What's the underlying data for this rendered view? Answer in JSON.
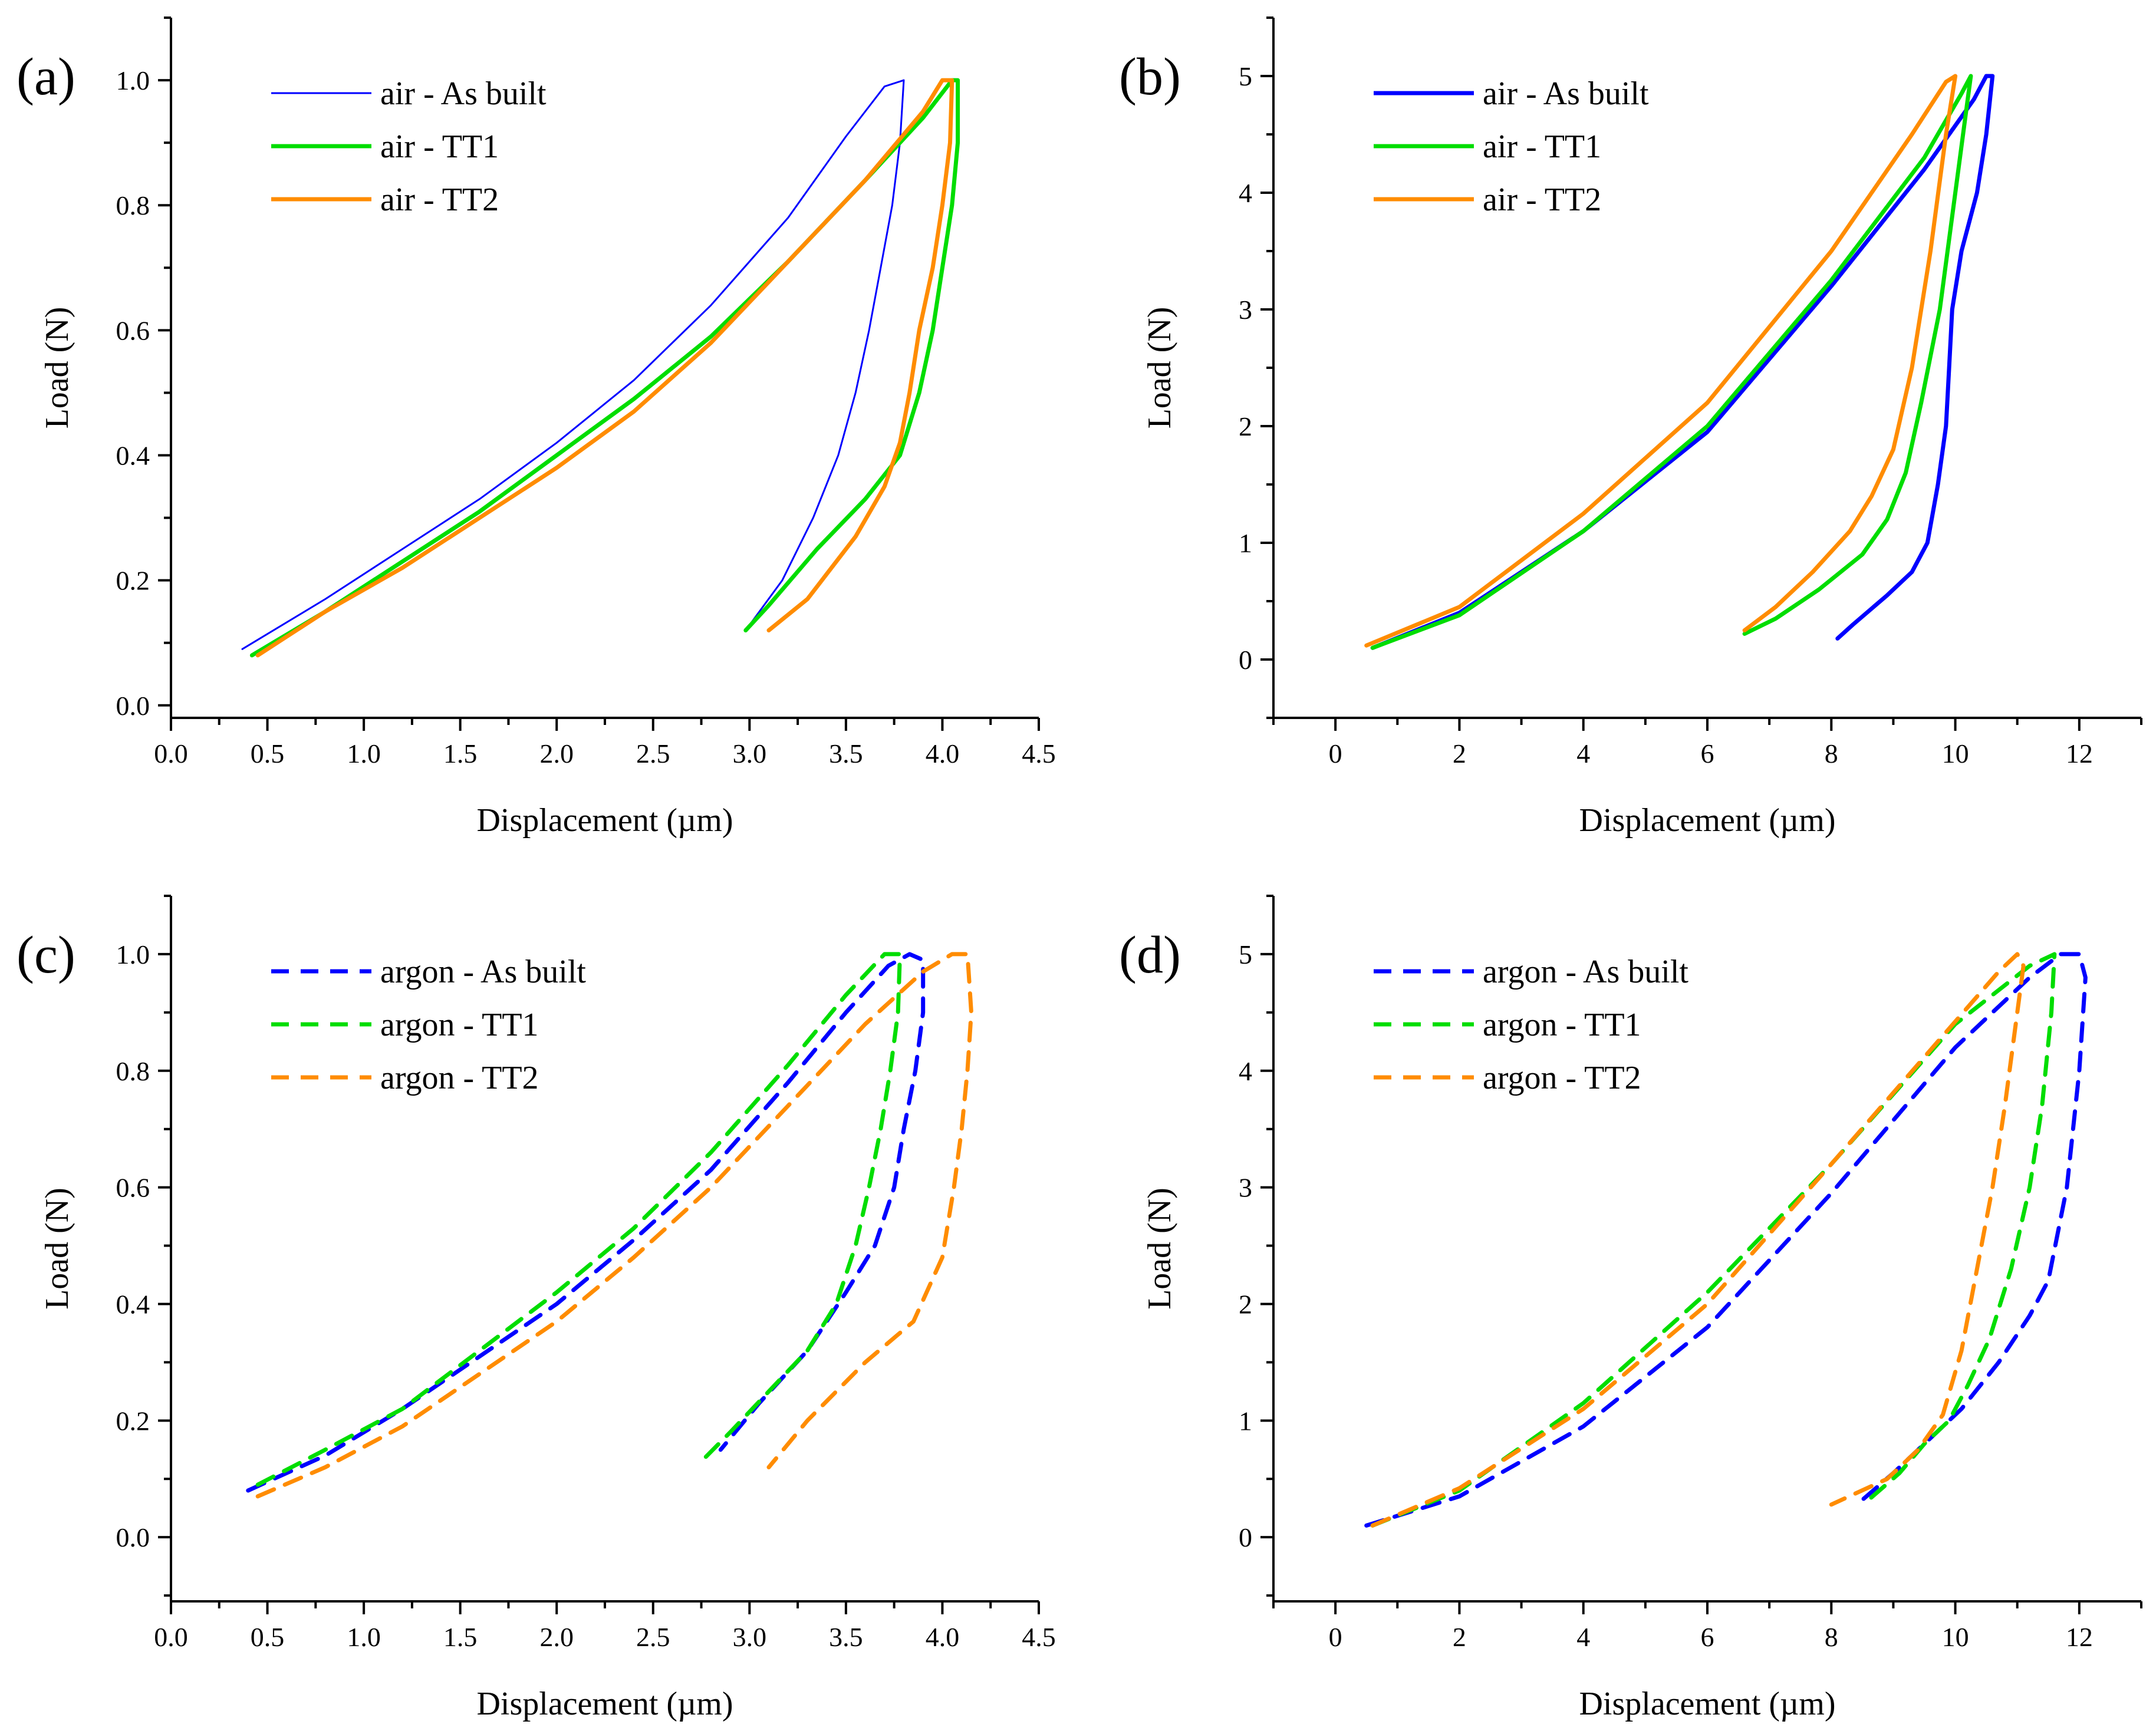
{
  "chart_data": [
    {
      "type": "line",
      "panel_label": "(a)",
      "xlabel": "Displacement (µm)",
      "ylabel": "Load (N)",
      "xlim": [
        0.0,
        4.5
      ],
      "ylim": [
        -0.02,
        1.1
      ],
      "xticks": [
        0.0,
        0.5,
        1.0,
        1.5,
        2.0,
        2.5,
        3.0,
        3.5,
        4.0,
        4.5
      ],
      "xtick_labels": [
        "0.0",
        "0.5",
        "1.0",
        "1.5",
        "2.0",
        "2.5",
        "3.0",
        "3.5",
        "4.0",
        "4.5"
      ],
      "yticks": [
        0.0,
        0.2,
        0.4,
        0.6,
        0.8,
        1.0
      ],
      "ytick_labels": [
        "0.0",
        "0.2",
        "0.4",
        "0.6",
        "0.8",
        "1.0"
      ],
      "legend_position": "top-left",
      "series": [
        {
          "name": "air - As built",
          "color": "#0000ff",
          "dash": "solid",
          "weight": "thin",
          "x": [
            0.37,
            0.8,
            1.2,
            1.6,
            2.0,
            2.4,
            2.8,
            3.2,
            3.5,
            3.7,
            3.8,
            3.8,
            3.78,
            3.74,
            3.68,
            3.62,
            3.55,
            3.46,
            3.33,
            3.17,
            2.98
          ],
          "y": [
            0.09,
            0.17,
            0.25,
            0.33,
            0.42,
            0.52,
            0.64,
            0.78,
            0.91,
            0.99,
            1.0,
            1.0,
            0.9,
            0.8,
            0.7,
            0.6,
            0.5,
            0.4,
            0.3,
            0.2,
            0.12
          ]
        },
        {
          "name": "air - TT1",
          "color": "#00dd00",
          "dash": "solid",
          "weight": "thick",
          "x": [
            0.42,
            0.8,
            1.2,
            1.6,
            2.0,
            2.4,
            2.8,
            3.2,
            3.6,
            3.9,
            4.05,
            4.08,
            4.08,
            4.05,
            4.0,
            3.95,
            3.88,
            3.78,
            3.6,
            3.35,
            3.1,
            2.98
          ],
          "y": [
            0.08,
            0.15,
            0.23,
            0.31,
            0.4,
            0.49,
            0.59,
            0.71,
            0.84,
            0.94,
            1.0,
            1.0,
            0.9,
            0.8,
            0.7,
            0.6,
            0.5,
            0.4,
            0.33,
            0.25,
            0.16,
            0.12
          ]
        },
        {
          "name": "air - TT2",
          "color": "#ff8c00",
          "dash": "solid",
          "weight": "thick",
          "x": [
            0.45,
            0.8,
            1.2,
            1.6,
            2.0,
            2.4,
            2.8,
            3.2,
            3.6,
            3.9,
            4.0,
            4.05,
            4.04,
            4.0,
            3.95,
            3.88,
            3.83,
            3.78,
            3.7,
            3.55,
            3.3,
            3.1
          ],
          "y": [
            0.08,
            0.15,
            0.22,
            0.3,
            0.38,
            0.47,
            0.58,
            0.71,
            0.84,
            0.95,
            1.0,
            1.0,
            0.9,
            0.8,
            0.7,
            0.6,
            0.5,
            0.42,
            0.35,
            0.27,
            0.17,
            0.12
          ]
        }
      ]
    },
    {
      "type": "line",
      "panel_label": "(b)",
      "xlabel": "Displacement (µm)",
      "ylabel": "Load (N)",
      "xlim": [
        -1.0,
        13.0
      ],
      "ylim": [
        -0.5,
        5.5
      ],
      "xticks": [
        0,
        2,
        4,
        6,
        8,
        10,
        12
      ],
      "xtick_labels": [
        "0",
        "2",
        "4",
        "6",
        "8",
        "10",
        "12"
      ],
      "yticks": [
        0,
        1,
        2,
        3,
        4,
        5
      ],
      "ytick_labels": [
        "0",
        "1",
        "2",
        "3",
        "4",
        "5"
      ],
      "legend_position": "top-left",
      "series": [
        {
          "name": "air - As built",
          "color": "#0000ff",
          "dash": "solid",
          "weight": "thick",
          "x": [
            0.6,
            2.0,
            4.0,
            6.0,
            8.0,
            9.5,
            10.3,
            10.5,
            10.6,
            10.5,
            10.35,
            10.1,
            9.95,
            9.9,
            9.85,
            9.72,
            9.55,
            9.3,
            8.9,
            8.35,
            8.1
          ],
          "y": [
            0.1,
            0.4,
            1.1,
            1.95,
            3.2,
            4.2,
            4.8,
            5.0,
            5.0,
            4.5,
            4.0,
            3.5,
            3.0,
            2.5,
            2.0,
            1.5,
            1.0,
            0.75,
            0.55,
            0.3,
            0.18
          ]
        },
        {
          "name": "air - TT1",
          "color": "#00dd00",
          "dash": "solid",
          "weight": "thick",
          "x": [
            0.6,
            2.0,
            4.0,
            6.0,
            8.0,
            9.5,
            10.1,
            10.25,
            10.2,
            10.0,
            9.75,
            9.45,
            9.2,
            8.9,
            8.5,
            7.8,
            7.1,
            6.6
          ],
          "y": [
            0.1,
            0.38,
            1.1,
            2.0,
            3.25,
            4.3,
            4.85,
            5.0,
            4.8,
            4.0,
            3.0,
            2.2,
            1.6,
            1.2,
            0.9,
            0.6,
            0.35,
            0.22
          ]
        },
        {
          "name": "air - TT2",
          "color": "#ff8c00",
          "dash": "solid",
          "weight": "thick",
          "x": [
            0.5,
            2.0,
            4.0,
            6.0,
            8.0,
            9.3,
            9.85,
            10.0,
            9.85,
            9.6,
            9.3,
            9.0,
            8.65,
            8.3,
            7.7,
            7.1,
            6.6
          ],
          "y": [
            0.12,
            0.45,
            1.25,
            2.2,
            3.5,
            4.5,
            4.95,
            5.0,
            4.5,
            3.5,
            2.5,
            1.8,
            1.4,
            1.1,
            0.75,
            0.45,
            0.25
          ]
        }
      ]
    },
    {
      "type": "line",
      "panel_label": "(c)",
      "xlabel": "Displacement (µm)",
      "ylabel": "Load (N)",
      "xlim": [
        0.0,
        4.5
      ],
      "ylim": [
        -0.11,
        1.1
      ],
      "xticks": [
        0.0,
        0.5,
        1.0,
        1.5,
        2.0,
        2.5,
        3.0,
        3.5,
        4.0,
        4.5
      ],
      "xtick_labels": [
        "0.0",
        "0.5",
        "1.0",
        "1.5",
        "2.0",
        "2.5",
        "3.0",
        "3.5",
        "4.0",
        "4.5"
      ],
      "yticks": [
        0.0,
        0.2,
        0.4,
        0.6,
        0.8,
        1.0
      ],
      "ytick_labels": [
        "0.0",
        "0.2",
        "0.4",
        "0.6",
        "0.8",
        "1.0"
      ],
      "legend_position": "top-left",
      "series": [
        {
          "name": "argon - As built",
          "color": "#0000ff",
          "dash": "dashed",
          "weight": "thick",
          "x": [
            0.4,
            0.8,
            1.2,
            1.6,
            2.0,
            2.4,
            2.8,
            3.2,
            3.5,
            3.72,
            3.83,
            3.9,
            3.9,
            3.86,
            3.8,
            3.75,
            3.65,
            3.5,
            3.3,
            3.05,
            2.85
          ],
          "y": [
            0.08,
            0.14,
            0.22,
            0.31,
            0.4,
            0.51,
            0.63,
            0.78,
            0.9,
            0.98,
            1.0,
            0.99,
            0.9,
            0.8,
            0.7,
            0.6,
            0.5,
            0.42,
            0.32,
            0.23,
            0.15
          ]
        },
        {
          "name": "argon - TT1",
          "color": "#00dd00",
          "dash": "dashed",
          "weight": "thick",
          "x": [
            0.45,
            0.8,
            1.2,
            1.6,
            2.0,
            2.4,
            2.8,
            3.2,
            3.5,
            3.7,
            3.78,
            3.77,
            3.73,
            3.68,
            3.62,
            3.55,
            3.45,
            3.3,
            3.1,
            2.9,
            2.75
          ],
          "y": [
            0.09,
            0.15,
            0.22,
            0.32,
            0.42,
            0.53,
            0.66,
            0.81,
            0.93,
            1.0,
            1.0,
            0.9,
            0.8,
            0.7,
            0.6,
            0.5,
            0.4,
            0.32,
            0.25,
            0.18,
            0.13
          ]
        },
        {
          "name": "argon - TT2",
          "color": "#ff8c00",
          "dash": "dashed",
          "weight": "thick",
          "x": [
            0.45,
            0.8,
            1.2,
            1.6,
            2.0,
            2.4,
            2.8,
            3.2,
            3.6,
            3.9,
            4.05,
            4.13,
            4.15,
            4.13,
            4.1,
            4.06,
            4.0,
            3.85,
            3.6,
            3.3,
            3.1
          ],
          "y": [
            0.07,
            0.12,
            0.19,
            0.28,
            0.37,
            0.48,
            0.6,
            0.74,
            0.88,
            0.97,
            1.0,
            1.0,
            0.9,
            0.8,
            0.7,
            0.6,
            0.48,
            0.37,
            0.3,
            0.2,
            0.12
          ]
        }
      ]
    },
    {
      "type": "line",
      "panel_label": "(d)",
      "xlabel": "Displacement (µm)",
      "ylabel": "Load (N)",
      "xlim": [
        -1.0,
        13.0
      ],
      "ylim": [
        -0.55,
        5.5
      ],
      "xticks": [
        0,
        2,
        4,
        6,
        8,
        10,
        12
      ],
      "xtick_labels": [
        "0",
        "2",
        "4",
        "6",
        "8",
        "10",
        "12"
      ],
      "yticks": [
        0,
        1,
        2,
        3,
        4,
        5
      ],
      "ytick_labels": [
        "0",
        "1",
        "2",
        "3",
        "4",
        "5"
      ],
      "legend_position": "top-left",
      "series": [
        {
          "name": "argon - As built",
          "color": "#0000ff",
          "dash": "dashed",
          "weight": "thick",
          "x": [
            0.5,
            2.0,
            4.0,
            6.0,
            8.0,
            10.0,
            11.2,
            11.7,
            12.0,
            12.1,
            12.0,
            11.8,
            11.5,
            11.2,
            10.7,
            10.1,
            9.5,
            9.0,
            8.5
          ],
          "y": [
            0.1,
            0.35,
            0.95,
            1.8,
            2.95,
            4.2,
            4.8,
            5.0,
            5.0,
            4.8,
            4.0,
            3.0,
            2.2,
            1.9,
            1.5,
            1.1,
            0.8,
            0.55,
            0.32
          ]
        },
        {
          "name": "argon - TT1",
          "color": "#00dd00",
          "dash": "dashed",
          "weight": "thick",
          "x": [
            0.6,
            2.0,
            4.0,
            6.0,
            8.0,
            10.0,
            11.2,
            11.6,
            11.55,
            11.4,
            11.2,
            10.9,
            10.55,
            10.2,
            9.9,
            9.5,
            9.1,
            8.6
          ],
          "y": [
            0.1,
            0.4,
            1.15,
            2.1,
            3.2,
            4.4,
            4.9,
            5.0,
            4.5,
            3.7,
            3.0,
            2.3,
            1.7,
            1.3,
            1.0,
            0.8,
            0.55,
            0.32
          ]
        },
        {
          "name": "argon - TT2",
          "color": "#ff8c00",
          "dash": "dashed",
          "weight": "thick",
          "x": [
            0.6,
            2.0,
            4.0,
            6.0,
            8.0,
            9.8,
            10.7,
            11.0,
            11.1,
            11.0,
            10.8,
            10.6,
            10.35,
            10.1,
            9.8,
            9.4,
            8.9,
            8.0
          ],
          "y": [
            0.1,
            0.42,
            1.1,
            2.0,
            3.2,
            4.3,
            4.85,
            5.0,
            4.9,
            4.5,
            3.7,
            3.0,
            2.3,
            1.6,
            1.05,
            0.75,
            0.5,
            0.28
          ]
        }
      ]
    }
  ]
}
